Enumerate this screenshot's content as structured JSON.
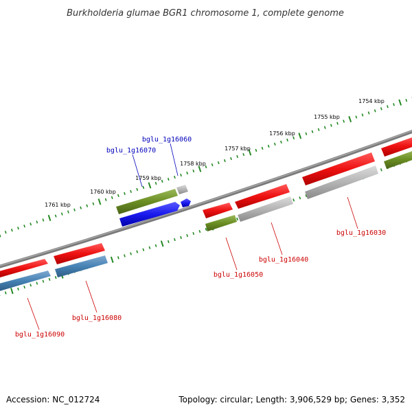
{
  "title": "Burkholderia glumae BGR1 chromosome 1, complete genome",
  "footer": {
    "accession": "Accession: NC_012724",
    "summary": "Topology: circular; Length: 3,906,529 bp; Genes: 3,352"
  },
  "ruler": [
    {
      "label": "1754 kbp"
    },
    {
      "label": "1755 kbp"
    },
    {
      "label": "1756 kbp"
    },
    {
      "label": "1757 kbp"
    },
    {
      "label": "1758 kbp"
    },
    {
      "label": "1759 kbp"
    },
    {
      "label": "1760 kbp"
    },
    {
      "label": "1761 kbp"
    }
  ],
  "genes": [
    {
      "id": "bglu_1g16030",
      "color": "#cc0000"
    },
    {
      "id": "bglu_1g16040",
      "color": "#cc0000"
    },
    {
      "id": "bglu_1g16050",
      "color": "#cc0000"
    },
    {
      "id": "bglu_1g16060",
      "color": "#0000bb"
    },
    {
      "id": "bglu_1g16070",
      "color": "#0000bb"
    },
    {
      "id": "bglu_1g16080",
      "color": "#cc0000"
    },
    {
      "id": "bglu_1g16090",
      "color": "#cc0000"
    }
  ],
  "colors": {
    "red": "#ee1111",
    "green": "#6b8e23",
    "blue": "#1a1aee",
    "steel": "#4682b4",
    "gray": "#a9a9a9",
    "backbone": "#707070",
    "ticks": "#228822"
  }
}
